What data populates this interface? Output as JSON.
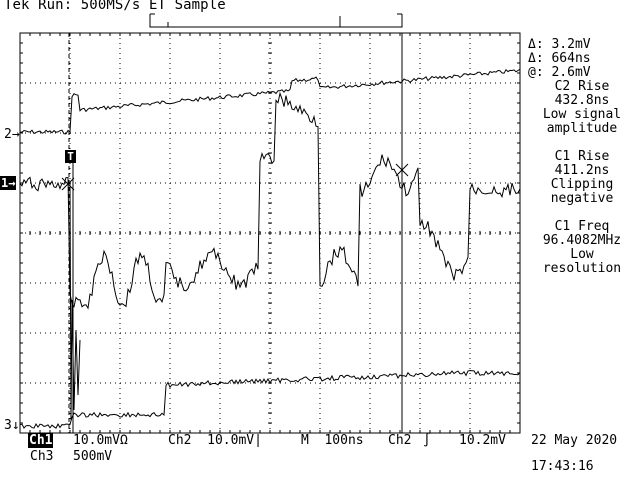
{
  "status": {
    "title": "Tek Run: 500MS/s ET Sample"
  },
  "channels": {
    "ch1_marker": "1",
    "ch2_marker": "2",
    "ch3_marker": "3",
    "trigger_marker": "T"
  },
  "measurements": {
    "delta_v": "Δ: 3.2mV",
    "delta_t": "Δ: 664ns",
    "at_v": "@: 2.6mV",
    "m1_label": "C2 Rise",
    "m1_value": "432.8ns",
    "m1_status_a": "Low signal",
    "m1_status_b": "amplitude",
    "m2_label": "C1 Rise",
    "m2_value": "411.2ns",
    "m2_status_a": "Clipping",
    "m2_status_b": "negative",
    "m3_label": "C1 Freq",
    "m3_value": "96.4082MHz",
    "m3_status_a": "Low",
    "m3_status_b": "resolution"
  },
  "settings": {
    "ch1_tag": "Ch1",
    "ch1_scale": "10.0mVΩ",
    "ch2_scale": "Ch2  10.0mV∣",
    "timebase": "M  100ns",
    "trig_source": "Ch2",
    "trig_slope": "∫",
    "trig_level": "10.2mV",
    "ch3_tag": "Ch3",
    "ch3_scale": "500mV",
    "date": "22 May 2020",
    "time": "17:43:16"
  }
}
